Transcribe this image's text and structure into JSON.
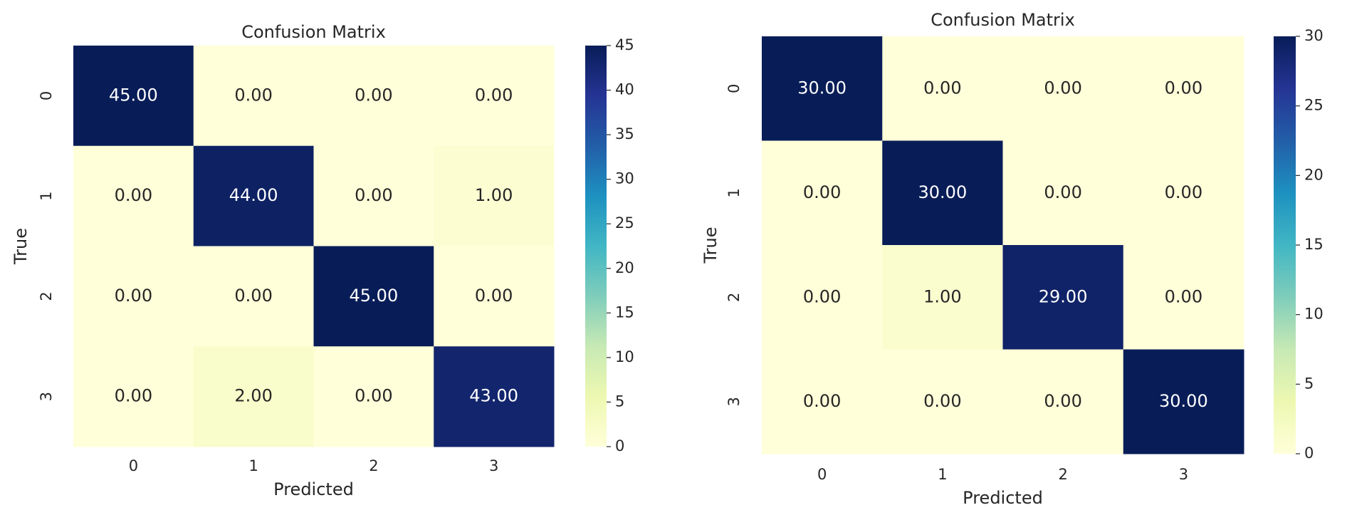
{
  "chart_data": [
    {
      "type": "heatmap",
      "title": "Confusion Matrix",
      "x_label": "Predicted",
      "y_label": "True",
      "x_categories": [
        "0",
        "1",
        "2",
        "3"
      ],
      "y_categories": [
        "0",
        "1",
        "2",
        "3"
      ],
      "values": [
        [
          45,
          0,
          0,
          0
        ],
        [
          0,
          44,
          0,
          1
        ],
        [
          0,
          0,
          45,
          0
        ],
        [
          0,
          2,
          0,
          43
        ]
      ],
      "value_labels": [
        [
          "45.00",
          "0.00",
          "0.00",
          "0.00"
        ],
        [
          "0.00",
          "44.00",
          "0.00",
          "1.00"
        ],
        [
          "0.00",
          "0.00",
          "45.00",
          "0.00"
        ],
        [
          "0.00",
          "2.00",
          "0.00",
          "43.00"
        ]
      ],
      "cmap": "YlGnBu",
      "clim": [
        0,
        45
      ],
      "cticks": [
        0,
        5,
        10,
        15,
        20,
        25,
        30,
        35,
        40,
        45
      ]
    },
    {
      "type": "heatmap",
      "title": "Confusion Matrix",
      "x_label": "Predicted",
      "y_label": "True",
      "x_categories": [
        "0",
        "1",
        "2",
        "3"
      ],
      "y_categories": [
        "0",
        "1",
        "2",
        "3"
      ],
      "values": [
        [
          30,
          0,
          0,
          0
        ],
        [
          0,
          30,
          0,
          0
        ],
        [
          0,
          1,
          29,
          0
        ],
        [
          0,
          0,
          0,
          30
        ]
      ],
      "value_labels": [
        [
          "30.00",
          "0.00",
          "0.00",
          "0.00"
        ],
        [
          "0.00",
          "30.00",
          "0.00",
          "0.00"
        ],
        [
          "0.00",
          "1.00",
          "29.00",
          "0.00"
        ],
        [
          "0.00",
          "0.00",
          "0.00",
          "30.00"
        ]
      ],
      "cmap": "YlGnBu",
      "clim": [
        0,
        30
      ],
      "cticks": [
        0,
        5,
        10,
        15,
        20,
        25,
        30
      ]
    }
  ]
}
